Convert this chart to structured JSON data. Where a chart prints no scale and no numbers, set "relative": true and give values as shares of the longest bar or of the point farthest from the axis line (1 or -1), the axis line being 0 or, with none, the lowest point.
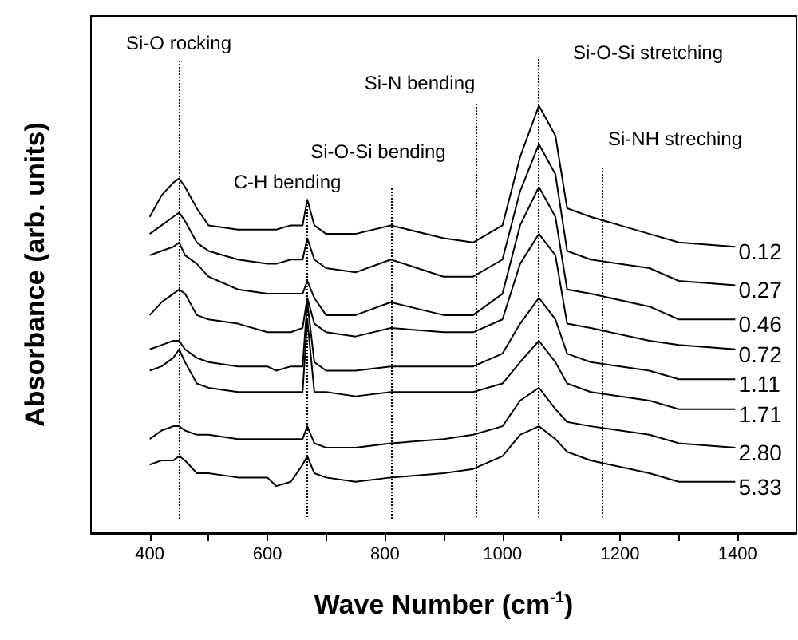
{
  "chart_data": {
    "type": "line",
    "relative": true,
    "xlabel": "Wave Number (cm$^{-1}$)",
    "ylabel": "Absorbance (arb. units)",
    "x": [
      400,
      420,
      440,
      450,
      460,
      480,
      500,
      550,
      600,
      615,
      640,
      660,
      668,
      680,
      700,
      750,
      810,
      900,
      950,
      1000,
      1030,
      1062,
      1090,
      1110,
      1150,
      1250,
      1300,
      1396
    ],
    "xlim": [
      300,
      1500
    ],
    "xticks": [
      400,
      {
        "value": 500,
        "label": null
      },
      600,
      {
        "value": 700,
        "label": null
      },
      800,
      {
        "value": 900,
        "label": null
      },
      1000,
      {
        "value": 1100,
        "label": null
      },
      1200,
      {
        "value": 1300,
        "label": null
      },
      1400
    ],
    "series": [
      {
        "name": "0.12",
        "color": "#000000",
        "values": [
          0.74,
          0.79,
          0.82,
          0.83,
          0.81,
          0.76,
          0.72,
          0.71,
          0.71,
          0.71,
          0.72,
          0.72,
          0.78,
          0.72,
          0.7,
          0.7,
          0.72,
          0.69,
          0.68,
          0.72,
          0.88,
          1.0,
          0.93,
          0.76,
          0.74,
          0.7,
          0.68,
          0.67
        ]
      },
      {
        "name": "0.27",
        "color": "#000000",
        "values": [
          0.7,
          0.72,
          0.74,
          0.75,
          0.73,
          0.68,
          0.66,
          0.64,
          0.63,
          0.63,
          0.64,
          0.64,
          0.69,
          0.64,
          0.62,
          0.61,
          0.64,
          0.6,
          0.6,
          0.64,
          0.8,
          0.91,
          0.84,
          0.66,
          0.64,
          0.62,
          0.59,
          0.58
        ]
      },
      {
        "name": "0.46",
        "color": "#000000",
        "values": [
          0.65,
          0.66,
          0.67,
          0.68,
          0.65,
          0.63,
          0.6,
          0.57,
          0.56,
          0.56,
          0.56,
          0.56,
          0.59,
          0.55,
          0.51,
          0.51,
          0.54,
          0.51,
          0.51,
          0.56,
          0.72,
          0.81,
          0.74,
          0.57,
          0.56,
          0.53,
          0.5,
          0.5
        ]
      },
      {
        "name": "0.72",
        "color": "#000000",
        "values": [
          0.51,
          0.54,
          0.56,
          0.57,
          0.56,
          0.51,
          0.5,
          0.49,
          0.47,
          0.47,
          0.47,
          0.48,
          0.55,
          0.49,
          0.47,
          0.46,
          0.48,
          0.47,
          0.47,
          0.5,
          0.63,
          0.7,
          0.65,
          0.49,
          0.48,
          0.45,
          0.44,
          0.43
        ]
      },
      {
        "name": "1.11",
        "color": "#000000",
        "values": [
          0.43,
          0.44,
          0.45,
          0.45,
          0.43,
          0.41,
          0.4,
          0.39,
          0.39,
          0.38,
          0.39,
          0.39,
          0.54,
          0.4,
          0.38,
          0.38,
          0.39,
          0.39,
          0.39,
          0.42,
          0.49,
          0.55,
          0.5,
          0.42,
          0.4,
          0.38,
          0.36,
          0.36
        ]
      },
      {
        "name": "1.71",
        "color": "#000000",
        "values": [
          0.38,
          0.39,
          0.41,
          0.43,
          0.4,
          0.35,
          0.34,
          0.33,
          0.33,
          0.33,
          0.33,
          0.33,
          0.5,
          0.33,
          0.33,
          0.32,
          0.33,
          0.33,
          0.33,
          0.35,
          0.4,
          0.45,
          0.4,
          0.35,
          0.33,
          0.31,
          0.29,
          0.29
        ]
      },
      {
        "name": "2.80",
        "color": "#000000",
        "values": [
          0.22,
          0.24,
          0.25,
          0.25,
          0.24,
          0.23,
          0.23,
          0.22,
          0.22,
          0.22,
          0.22,
          0.22,
          0.25,
          0.21,
          0.2,
          0.2,
          0.21,
          0.22,
          0.23,
          0.25,
          0.31,
          0.34,
          0.29,
          0.26,
          0.25,
          0.23,
          0.21,
          0.2
        ]
      },
      {
        "name": "5.33",
        "color": "#000000",
        "values": [
          0.16,
          0.17,
          0.17,
          0.18,
          0.17,
          0.14,
          0.14,
          0.13,
          0.13,
          0.11,
          0.12,
          0.16,
          0.18,
          0.14,
          0.13,
          0.12,
          0.13,
          0.14,
          0.15,
          0.18,
          0.23,
          0.25,
          0.22,
          0.19,
          0.17,
          0.14,
          0.12,
          0.12
        ]
      }
    ],
    "ref_lines": [
      {
        "axis": "x",
        "value": 450,
        "label": "Si-O rocking",
        "line_style": "dotted"
      },
      {
        "axis": "x",
        "value": 668,
        "label": "C-H bending",
        "line_style": "dotted"
      },
      {
        "axis": "x",
        "value": 810,
        "label": "Si-O-Si bending",
        "line_style": "dotted"
      },
      {
        "axis": "x",
        "value": 955,
        "label": "Si-N bending",
        "line_style": "dotted"
      },
      {
        "axis": "x",
        "value": 1062,
        "label": "Si-O-Si stretching",
        "line_style": "dotted"
      },
      {
        "axis": "x",
        "value": 1170,
        "label": "Si-NH streching",
        "line_style": "dotted"
      }
    ],
    "grid": false,
    "marker": "none",
    "line_style": "solid"
  }
}
